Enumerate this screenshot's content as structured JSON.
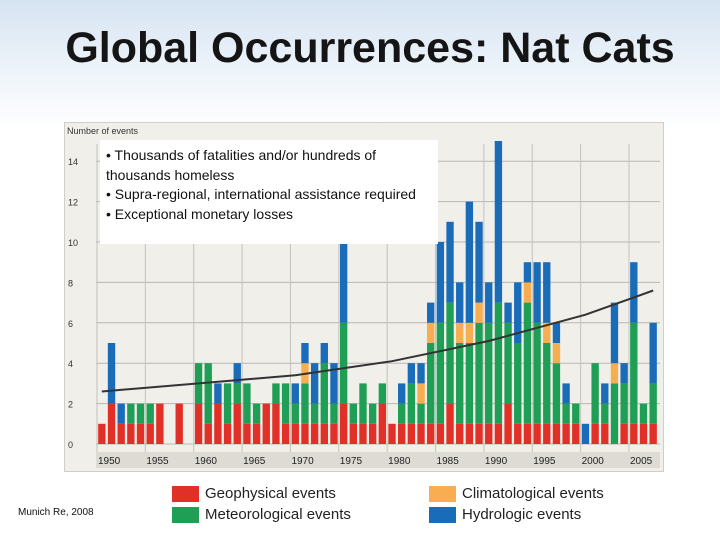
{
  "title": "Global Occurrences: Nat Cats",
  "notes": [
    "• Thousands of fatalities and/or hundreds of thousands homeless",
    "• Supra-regional, international assistance required",
    "• Exceptional monetary losses"
  ],
  "credit": "Munich Re, 2008",
  "colors": {
    "geophysical": "#e03027",
    "meteorological": "#1f9e55",
    "climatological": "#f7ad50",
    "hydrologic": "#1a6cb8",
    "trend": "#333333"
  },
  "chart_data": {
    "type": "bar",
    "stacked": true,
    "title": "",
    "ylabel": "Number of events",
    "xlabel": "",
    "ylim": [
      0,
      15
    ],
    "yticks": [
      0,
      2,
      4,
      6,
      8,
      10,
      12,
      14
    ],
    "xticks": [
      1950,
      1955,
      1960,
      1965,
      1970,
      1975,
      1980,
      1985,
      1990,
      1995,
      2000,
      2005
    ],
    "categories": [
      1950,
      1951,
      1952,
      1953,
      1954,
      1955,
      1956,
      1957,
      1958,
      1959,
      1960,
      1961,
      1962,
      1963,
      1964,
      1965,
      1966,
      1967,
      1968,
      1969,
      1970,
      1971,
      1972,
      1973,
      1974,
      1975,
      1976,
      1977,
      1978,
      1979,
      1980,
      1981,
      1982,
      1983,
      1984,
      1985,
      1986,
      1987,
      1988,
      1989,
      1990,
      1991,
      1992,
      1993,
      1994,
      1995,
      1996,
      1997,
      1998,
      1999,
      2000,
      2001,
      2002,
      2003,
      2004,
      2005,
      2006,
      2007
    ],
    "series": [
      {
        "name": "Geophysical events",
        "key": "geophysical",
        "values": [
          1,
          2,
          1,
          1,
          1,
          1,
          2,
          0,
          2,
          0,
          2,
          1,
          2,
          1,
          2,
          1,
          1,
          2,
          2,
          1,
          1,
          1,
          1,
          1,
          1,
          2,
          1,
          1,
          1,
          2,
          1,
          1,
          1,
          1,
          1,
          1,
          2,
          1,
          1,
          1,
          1,
          1,
          2,
          1,
          1,
          1,
          1,
          1,
          1,
          1,
          0,
          1,
          1,
          0,
          1,
          1,
          1,
          1
        ]
      },
      {
        "name": "Meteorological events",
        "key": "meteorological",
        "values": [
          0,
          0,
          0,
          1,
          1,
          1,
          0,
          0,
          0,
          0,
          2,
          3,
          0,
          2,
          1,
          2,
          1,
          0,
          1,
          2,
          1,
          2,
          1,
          3,
          1,
          4,
          1,
          2,
          1,
          1,
          0,
          1,
          2,
          1,
          4,
          5,
          5,
          4,
          4,
          5,
          5,
          6,
          4,
          4,
          6,
          5,
          4,
          3,
          1,
          1,
          0,
          3,
          1,
          3,
          2,
          5,
          1,
          2
        ]
      },
      {
        "name": "Climatological events",
        "key": "climatological",
        "values": [
          0,
          0,
          0,
          0,
          0,
          0,
          0,
          0,
          0,
          0,
          0,
          0,
          0,
          0,
          0,
          0,
          0,
          0,
          0,
          0,
          0,
          1,
          0,
          0,
          0,
          0,
          0,
          0,
          0,
          0,
          0,
          0,
          0,
          1,
          1,
          0,
          0,
          1,
          1,
          1,
          0,
          0,
          0,
          0,
          1,
          0,
          1,
          1,
          0,
          0,
          0,
          0,
          0,
          1,
          0,
          0,
          0,
          0
        ]
      },
      {
        "name": "Hydrologic events",
        "key": "hydrologic",
        "values": [
          0,
          3,
          1,
          0,
          0,
          0,
          0,
          0,
          0,
          0,
          0,
          0,
          1,
          0,
          1,
          0,
          0,
          0,
          0,
          0,
          1,
          1,
          2,
          1,
          2,
          4,
          0,
          0,
          0,
          0,
          0,
          1,
          1,
          1,
          1,
          4,
          4,
          2,
          6,
          4,
          2,
          8,
          1,
          3,
          1,
          3,
          3,
          1,
          1,
          0,
          1,
          0,
          1,
          3,
          1,
          3,
          0,
          3
        ]
      }
    ],
    "trend": {
      "x": [
        1950,
        1960,
        1970,
        1980,
        1990,
        2000,
        2007
      ],
      "y": [
        2.6,
        3.0,
        3.4,
        4.1,
        5.1,
        6.4,
        7.6
      ]
    }
  }
}
